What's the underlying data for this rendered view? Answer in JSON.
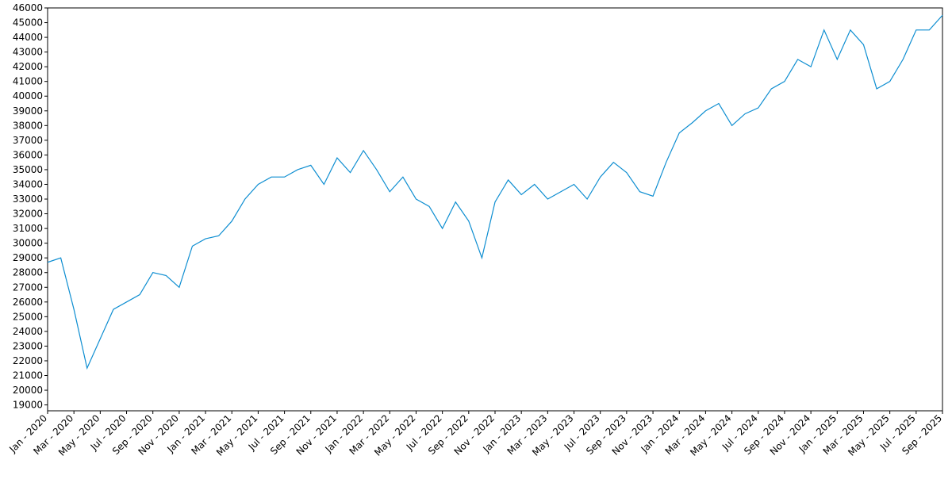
{
  "chart_data": {
    "type": "line",
    "x": [
      "2020-01",
      "2020-02",
      "2020-03",
      "2020-04",
      "2020-05",
      "2020-06",
      "2020-07",
      "2020-08",
      "2020-09",
      "2020-10",
      "2020-11",
      "2020-12",
      "2021-01",
      "2021-02",
      "2021-03",
      "2021-04",
      "2021-05",
      "2021-06",
      "2021-07",
      "2021-08",
      "2021-09",
      "2021-10",
      "2021-11",
      "2021-12",
      "2022-01",
      "2022-02",
      "2022-03",
      "2022-04",
      "2022-05",
      "2022-06",
      "2022-07",
      "2022-08",
      "2022-09",
      "2022-10",
      "2022-11",
      "2022-12",
      "2023-01",
      "2023-02",
      "2023-03",
      "2023-04",
      "2023-05",
      "2023-06",
      "2023-07",
      "2023-08",
      "2023-09",
      "2023-10",
      "2023-11",
      "2023-12",
      "2024-01",
      "2024-02",
      "2024-03",
      "2024-04",
      "2024-05",
      "2024-06",
      "2024-07",
      "2024-08",
      "2024-09",
      "2024-10",
      "2024-11",
      "2024-12",
      "2025-01",
      "2025-02",
      "2025-03",
      "2025-04",
      "2025-05",
      "2025-06",
      "2025-07",
      "2025-08",
      "2025-09"
    ],
    "series": [
      {
        "color": "#0e8ed1",
        "values": [
          28700,
          29000,
          25500,
          21500,
          23500,
          25500,
          26000,
          26500,
          28000,
          27800,
          27000,
          29800,
          30300,
          30500,
          31500,
          33000,
          34000,
          34500,
          34500,
          35000,
          35300,
          34000,
          35800,
          34800,
          36300,
          35000,
          33500,
          34500,
          33000,
          32500,
          31000,
          32800,
          31500,
          29000,
          32800,
          34300,
          33300,
          34000,
          33000,
          33500,
          34000,
          33000,
          34500,
          35500,
          34800,
          33500,
          33200,
          35500,
          37500,
          38200,
          39000,
          39500,
          38000,
          38800,
          39200,
          40500,
          41000,
          42500,
          42000,
          44500,
          42500,
          44500,
          43500,
          40500,
          41000,
          42500,
          44500,
          44500,
          45500
        ]
      }
    ],
    "xlim": [
      "2020-01",
      "2025-09"
    ],
    "xticks": [
      {
        "value": "2020-01",
        "label": "Jan - 2020"
      },
      {
        "value": "2020-03",
        "label": "Mar - 2020"
      },
      {
        "value": "2020-05",
        "label": "May - 2020"
      },
      {
        "value": "2020-07",
        "label": "Jul - 2020"
      },
      {
        "value": "2020-09",
        "label": "Sep - 2020"
      },
      {
        "value": "2020-11",
        "label": "Nov - 2020"
      },
      {
        "value": "2021-01",
        "label": "Jan - 2021"
      },
      {
        "value": "2021-03",
        "label": "Mar - 2021"
      },
      {
        "value": "2021-05",
        "label": "May - 2021"
      },
      {
        "value": "2021-07",
        "label": "Jul - 2021"
      },
      {
        "value": "2021-09",
        "label": "Sep - 2021"
      },
      {
        "value": "2021-11",
        "label": "Nov - 2021"
      },
      {
        "value": "2022-01",
        "label": "Jan - 2022"
      },
      {
        "value": "2022-03",
        "label": "Mar - 2022"
      },
      {
        "value": "2022-05",
        "label": "May - 2022"
      },
      {
        "value": "2022-07",
        "label": "Jul - 2022"
      },
      {
        "value": "2022-09",
        "label": "Sep - 2022"
      },
      {
        "value": "2022-11",
        "label": "Nov - 2022"
      },
      {
        "value": "2023-01",
        "label": "Jan - 2023"
      },
      {
        "value": "2023-03",
        "label": "Mar - 2023"
      },
      {
        "value": "2023-05",
        "label": "May - 2023"
      },
      {
        "value": "2023-07",
        "label": "Jul - 2023"
      },
      {
        "value": "2023-09",
        "label": "Sep - 2023"
      },
      {
        "value": "2023-11",
        "label": "Nov - 2023"
      },
      {
        "value": "2024-01",
        "label": "Jan - 2024"
      },
      {
        "value": "2024-03",
        "label": "Mar - 2024"
      },
      {
        "value": "2024-05",
        "label": "May - 2024"
      },
      {
        "value": "2024-07",
        "label": "Jul - 2024"
      },
      {
        "value": "2024-09",
        "label": "Sep - 2024"
      },
      {
        "value": "2024-11",
        "label": "Nov - 2024"
      },
      {
        "value": "2025-01",
        "label": "Jan - 2025"
      },
      {
        "value": "2025-03",
        "label": "Mar - 2025"
      },
      {
        "value": "2025-05",
        "label": "May - 2025"
      },
      {
        "value": "2025-07",
        "label": "Jul - 2025"
      },
      {
        "value": "2025-09",
        "label": "Sep - 2025"
      }
    ],
    "ylim": [
      18600,
      46000
    ],
    "yticks": [
      19000,
      20000,
      21000,
      22000,
      23000,
      24000,
      25000,
      26000,
      27000,
      28000,
      29000,
      30000,
      31000,
      32000,
      33000,
      34000,
      35000,
      36000,
      37000,
      38000,
      39000,
      40000,
      41000,
      42000,
      43000,
      44000,
      45000,
      46000
    ]
  }
}
